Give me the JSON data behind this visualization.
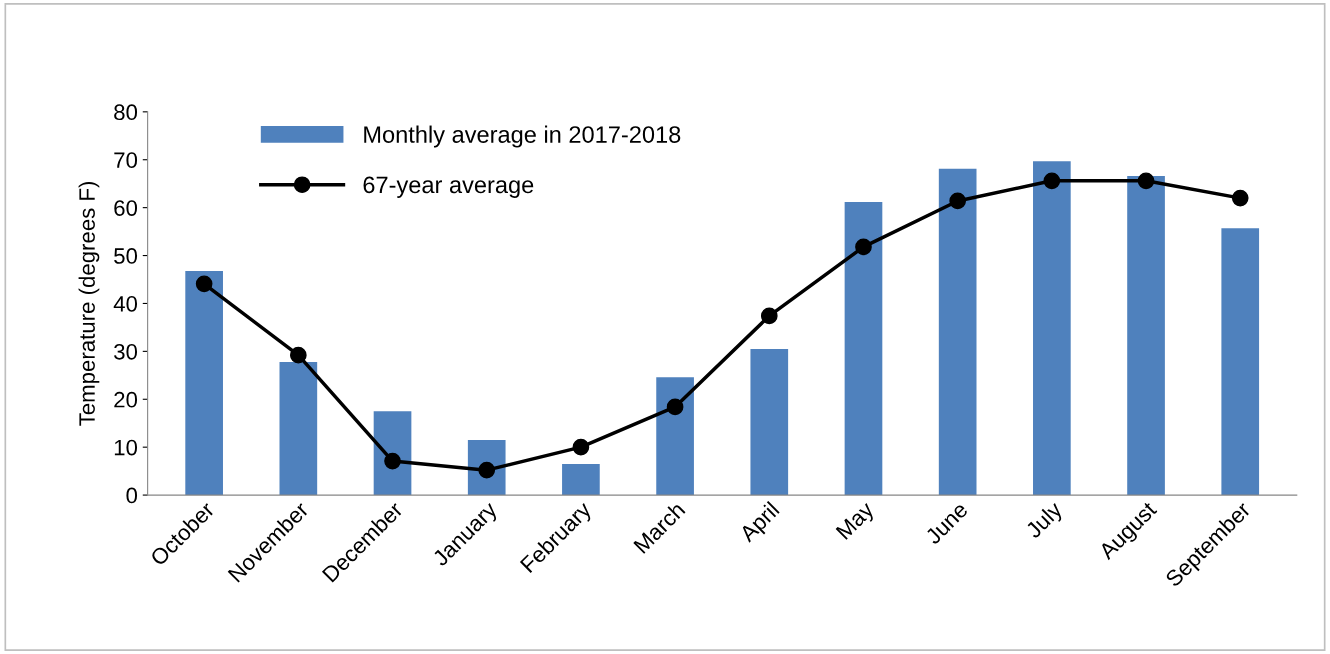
{
  "chart_data": {
    "type": "bar",
    "ylabel": "Temperature (degrees F)",
    "categories": [
      "October",
      "November",
      "December",
      "January",
      "February",
      "March",
      "April",
      "May",
      "June",
      "July",
      "August",
      "September"
    ],
    "series": [
      {
        "name": "Monthly average in 2017-2018",
        "color": "#4f81bd",
        "values": [
          46.8,
          27.8,
          17.5,
          11.5,
          6.5,
          24.6,
          30.5,
          61.2,
          68.1,
          69.7,
          66.6,
          55.7
        ]
      },
      {
        "name": "67-year average",
        "type": "line",
        "color": "#000000",
        "marker": "circle",
        "values": [
          44.1,
          29.2,
          7.1,
          5.2,
          10.0,
          18.4,
          37.4,
          51.8,
          61.4,
          65.6,
          65.6,
          62.0
        ]
      }
    ],
    "ylim": [
      0,
      80
    ],
    "yticks": [
      0,
      10,
      20,
      30,
      40,
      50,
      60,
      70,
      80
    ],
    "grid": false,
    "legend": "top left"
  }
}
